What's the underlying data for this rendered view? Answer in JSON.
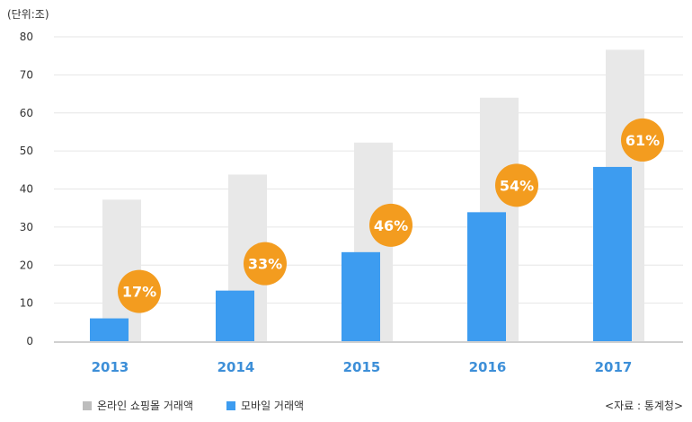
{
  "unit_label": "(단위:조)",
  "source": "<자료 : 통계청>",
  "colors": {
    "online": "#e8e8e8",
    "online_legend": "#bdbdbd",
    "mobile": "#3d9cf0",
    "badge": "#f39c1f",
    "year_label": "#3d8fd8",
    "grid": "#e6e6e6"
  },
  "chart_data": {
    "type": "bar",
    "categories": [
      "2013",
      "2014",
      "2015",
      "2016",
      "2017"
    ],
    "series": [
      {
        "name": "온라인 쇼핑몰 거래액",
        "values": [
          37.2,
          43.8,
          52.2,
          64.0,
          76.6
        ]
      },
      {
        "name": "모바일 거래액",
        "values": [
          6.0,
          13.3,
          23.4,
          33.9,
          45.8
        ]
      }
    ],
    "share_labels": [
      "17%",
      "33%",
      "46%",
      "54%",
      "61%"
    ],
    "yticks": [
      "0",
      "10",
      "20",
      "30",
      "40",
      "50",
      "60",
      "70",
      "80"
    ],
    "ylim": [
      0,
      80
    ],
    "grid": true,
    "legend": "bottom-left"
  }
}
